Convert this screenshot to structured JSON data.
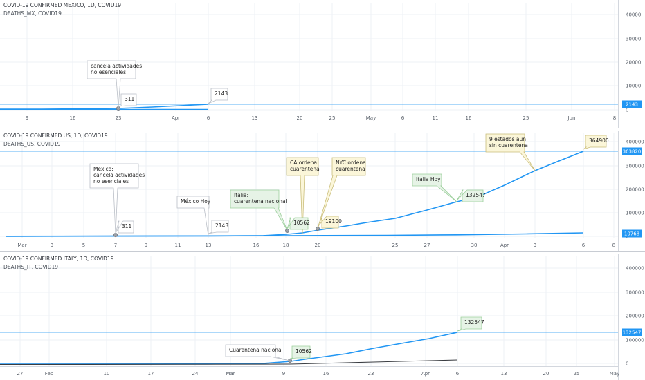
{
  "colors": {
    "line": "#2196f3",
    "death": "#3a3d42",
    "tag": "#2196f3",
    "grid": "#eef1f6"
  },
  "chart_data": [
    {
      "type": "line",
      "title": "COVID-19 CONFIRMED MEXICO, 1D, COVID19",
      "subtitle": "DEATHS_MX, COVID19",
      "yticks": [
        "40000",
        "30000",
        "20000",
        "10000",
        "0"
      ],
      "xticks": [
        "9",
        "16",
        "23",
        "Apr",
        "6",
        "13",
        "20",
        "25",
        "May",
        "6",
        "11",
        "16",
        "25",
        "Jun",
        "8"
      ],
      "last_value_tag": "2143",
      "series": [
        {
          "values": [
            [
              0,
              0
            ],
            [
              30,
              0
            ],
            [
              60,
              50
            ],
            [
              90,
              200
            ],
            [
              120,
              311
            ],
            [
              170,
              1200
            ],
            [
              240,
              2143
            ]
          ]
        }
      ],
      "annotations": [
        {
          "text": [
            "cancela actividades",
            "no esenciales"
          ]
        }
      ],
      "badges": [
        "311",
        "2143"
      ]
    },
    {
      "type": "line",
      "title": "COVID-19 CONFIRMED US, 1D, COVID19",
      "subtitle": "DEATHS_US, COVID19",
      "yticks": [
        "400000",
        "300000",
        "200000",
        "100000",
        "0"
      ],
      "xticks": [
        "Mar",
        "3",
        "5",
        "7",
        "9",
        "11",
        "13",
        "16",
        "18",
        "20",
        "25",
        "27",
        "30",
        "Apr",
        "3",
        "6",
        "8"
      ],
      "last_value_tags": [
        "363820",
        "10768"
      ],
      "annotations": [
        {
          "text": [
            "México:",
            "cancela actividades",
            "no esenciales"
          ]
        },
        {
          "text": [
            "México Hoy"
          ]
        },
        {
          "text": [
            "Italia:",
            "cuarentena nacional"
          ]
        },
        {
          "text": [
            "CA ordena",
            "cuarentena"
          ]
        },
        {
          "text": [
            "NYC ordena",
            "cuarentena"
          ]
        },
        {
          "text": [
            "Italia Hoy"
          ]
        },
        {
          "text": [
            "9 estados aun",
            "sin cuarentena"
          ]
        }
      ],
      "badges": [
        "311",
        "2143",
        "10562",
        "19100",
        "132547",
        "364900"
      ]
    },
    {
      "type": "line",
      "title": "COVID-19 CONFIRMED ITALY, 1D, COVID19",
      "subtitle": "DEATHS_IT, COVID19",
      "yticks": [
        "400000",
        "300000",
        "200000",
        "100000",
        "0"
      ],
      "xticks": [
        "27",
        "Feb",
        "10",
        "17",
        "24",
        "Mar",
        "9",
        "16",
        "23",
        "Apr",
        "6",
        "13",
        "20",
        "25",
        "May"
      ],
      "last_value_tag": "132547",
      "annotations": [
        {
          "text": [
            "Cuarentena nacional"
          ]
        }
      ],
      "badges": [
        "10562",
        "132547"
      ]
    }
  ]
}
